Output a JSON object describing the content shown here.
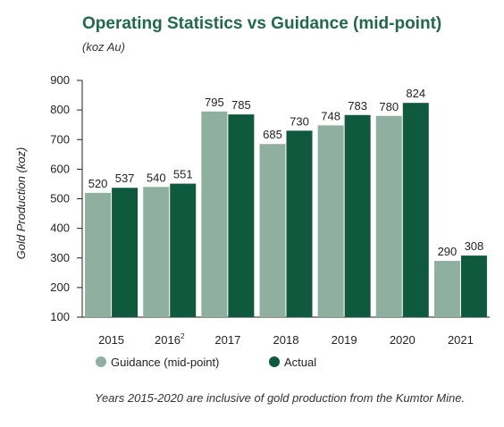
{
  "chart_data": {
    "type": "bar",
    "title": "Operating Statistics vs Guidance (mid-point)",
    "subtitle": "(koz Au)",
    "ylabel": "Gold Production (koz)",
    "xlabel": "",
    "ylim": [
      100,
      900
    ],
    "yticks": [
      100,
      200,
      300,
      400,
      500,
      600,
      700,
      800,
      900
    ],
    "categories": [
      "2015",
      "2016",
      "2017",
      "2018",
      "2019",
      "2020",
      "2021"
    ],
    "category_superscripts": [
      "",
      "2",
      "",
      "",
      "",
      "",
      ""
    ],
    "series": [
      {
        "name": "Guidance (mid-point)",
        "color": "#8fb0a0",
        "values": [
          520,
          540,
          795,
          685,
          748,
          780,
          290
        ]
      },
      {
        "name": "Actual",
        "color": "#0f5a3e",
        "values": [
          537,
          551,
          785,
          730,
          783,
          824,
          308
        ]
      }
    ],
    "legend_position": "bottom",
    "grid": false,
    "note": "Years 2015-2020 are inclusive of gold production from the Kumtor Mine."
  }
}
